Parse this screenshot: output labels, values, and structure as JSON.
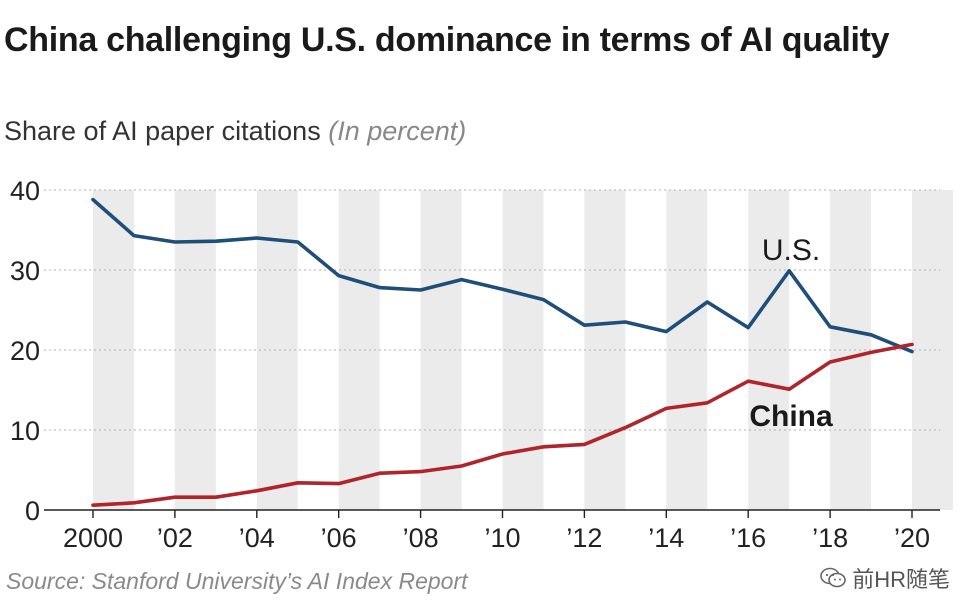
{
  "title": "China challenging U.S. dominance in terms of AI quality",
  "subtitle": "Share of AI paper citations",
  "subtitle_unit": "(In percent)",
  "source": "Source: Stanford University’s AI Index Report",
  "watermark": "前HR随笔",
  "colors": {
    "us": "#1f4e79",
    "china": "#b0252b",
    "stripe": "#ebebeb",
    "grid": "#bdbdbd"
  },
  "chart_data": {
    "type": "line",
    "title": "China challenging U.S. dominance in terms of AI quality",
    "subtitle": "Share of AI paper citations (In percent)",
    "xlabel": "",
    "ylabel": "",
    "ylim": [
      0,
      40
    ],
    "yticks": [
      0,
      10,
      20,
      30,
      40
    ],
    "x": [
      2000,
      2001,
      2002,
      2003,
      2004,
      2005,
      2006,
      2007,
      2008,
      2009,
      2010,
      2011,
      2012,
      2013,
      2014,
      2015,
      2016,
      2017,
      2018,
      2019,
      2020
    ],
    "xtick_labels": [
      {
        "year": 2000,
        "label": "2000"
      },
      {
        "year": 2002,
        "label": "’02"
      },
      {
        "year": 2004,
        "label": "’04"
      },
      {
        "year": 2006,
        "label": "’06"
      },
      {
        "year": 2008,
        "label": "’08"
      },
      {
        "year": 2010,
        "label": "’10"
      },
      {
        "year": 2012,
        "label": "’12"
      },
      {
        "year": 2014,
        "label": "’14"
      },
      {
        "year": 2016,
        "label": "’16"
      },
      {
        "year": 2018,
        "label": "’18"
      },
      {
        "year": 2020,
        "label": "’20"
      }
    ],
    "series": [
      {
        "name": "U.S.",
        "label_bold": false,
        "values": [
          38.8,
          34.3,
          33.5,
          33.6,
          34.0,
          33.5,
          29.3,
          27.8,
          27.5,
          28.8,
          27.6,
          26.3,
          23.1,
          23.5,
          22.3,
          26.0,
          22.8,
          29.9,
          22.9,
          21.9,
          19.8
        ]
      },
      {
        "name": "China",
        "label_bold": true,
        "values": [
          0.6,
          0.9,
          1.6,
          1.6,
          2.4,
          3.4,
          3.3,
          4.6,
          4.8,
          5.5,
          7.0,
          7.9,
          8.2,
          10.3,
          12.7,
          13.4,
          16.1,
          15.1,
          18.5,
          19.7,
          20.7
        ]
      }
    ],
    "grid": true,
    "stripes": "alternate years shaded",
    "legend": "direct labels on lines"
  }
}
